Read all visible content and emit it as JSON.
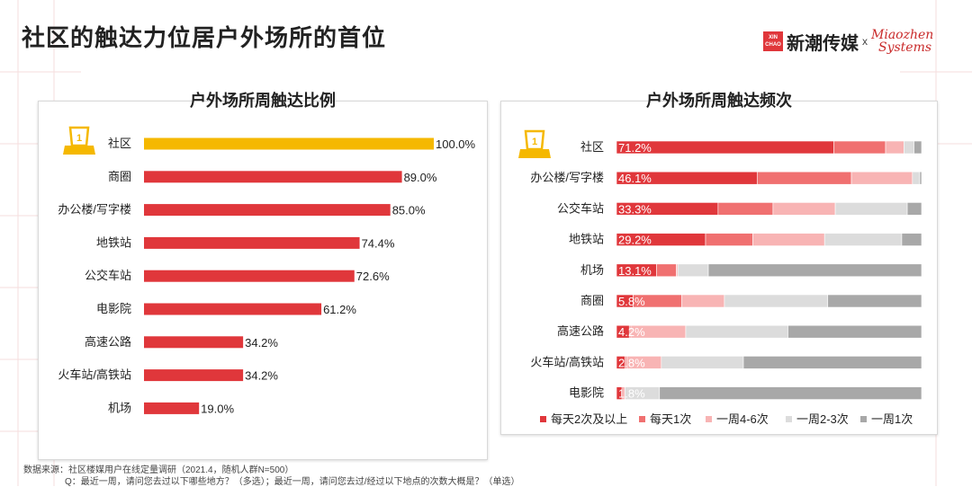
{
  "title": "社区的触达力位居户外场所的首位",
  "logo": {
    "badge_line1": "XIN",
    "badge_line2": "CHAO",
    "name_cn": "新潮传媒",
    "separator": "x",
    "partner_line1": "Miaozhen",
    "partner_line2": "Systems"
  },
  "footnotes": {
    "source": "数据来源：社区楼媒用户在线定量调研（2021.4，随机人群N=500）",
    "question": "Q：最近一周，请问您去过以下哪些地方？（多选）；最近一周，请问您去过/经过以下地点的次数大概是？（单选）"
  },
  "rank_badge": "1",
  "colors": {
    "highlight": "#f5b800",
    "bar": "#e0373b",
    "freq": [
      "#e0373b",
      "#f07070",
      "#f8b4b4",
      "#dcdcdc",
      "#a8a8a8"
    ]
  },
  "chart_data": [
    {
      "type": "bar",
      "orientation": "horizontal",
      "title": "户外场所周触达比例",
      "categories": [
        "社区",
        "商圈",
        "办公楼/写字楼",
        "地铁站",
        "公交车站",
        "电影院",
        "高速公路",
        "火车站/高铁站",
        "机场"
      ],
      "values": [
        100.0,
        89.0,
        85.0,
        74.4,
        72.6,
        61.2,
        34.2,
        34.2,
        19.0
      ],
      "labels": [
        "100.0%",
        "89.0%",
        "85.0%",
        "74.4%",
        "72.6%",
        "61.2%",
        "34.2%",
        "34.2%",
        "19.0%"
      ],
      "xlim": [
        0,
        100
      ]
    },
    {
      "type": "bar",
      "orientation": "horizontal",
      "stacked": true,
      "percent": true,
      "title": "户外场所周触达频次",
      "categories": [
        "社区",
        "办公楼/写字楼",
        "公交车站",
        "地铁站",
        "机场",
        "商圈",
        "高速公路",
        "火车站/高铁站",
        "电影院"
      ],
      "series": [
        {
          "name": "每天2次及以上",
          "values": [
            71.2,
            46.1,
            33.3,
            29.2,
            13.1,
            5.8,
            4.2,
            2.8,
            1.8
          ],
          "labels": [
            "71.2%",
            "46.1%",
            "33.3%",
            "29.2%",
            "13.1%",
            "5.8%",
            "4.2%",
            "2.8%",
            "1.8%"
          ]
        },
        {
          "name": "每天1次",
          "values": [
            17.0,
            30.9,
            18.0,
            15.5,
            6.5,
            16.9,
            0.5,
            0.5,
            0.5
          ]
        },
        {
          "name": "一周4-6次",
          "values": [
            6.0,
            20.0,
            20.4,
            23.5,
            0.5,
            14.8,
            18.0,
            11.4,
            0.5
          ]
        },
        {
          "name": "一周2-3次",
          "values": [
            3.3,
            2.4,
            23.6,
            25.3,
            10.0,
            35.9,
            33.5,
            26.9,
            11.3
          ]
        },
        {
          "name": "一周1次",
          "values": [
            2.5,
            0.6,
            4.7,
            6.5,
            69.9,
            32.6,
            43.8,
            58.4,
            85.9
          ]
        }
      ],
      "legend_position": "bottom"
    }
  ]
}
